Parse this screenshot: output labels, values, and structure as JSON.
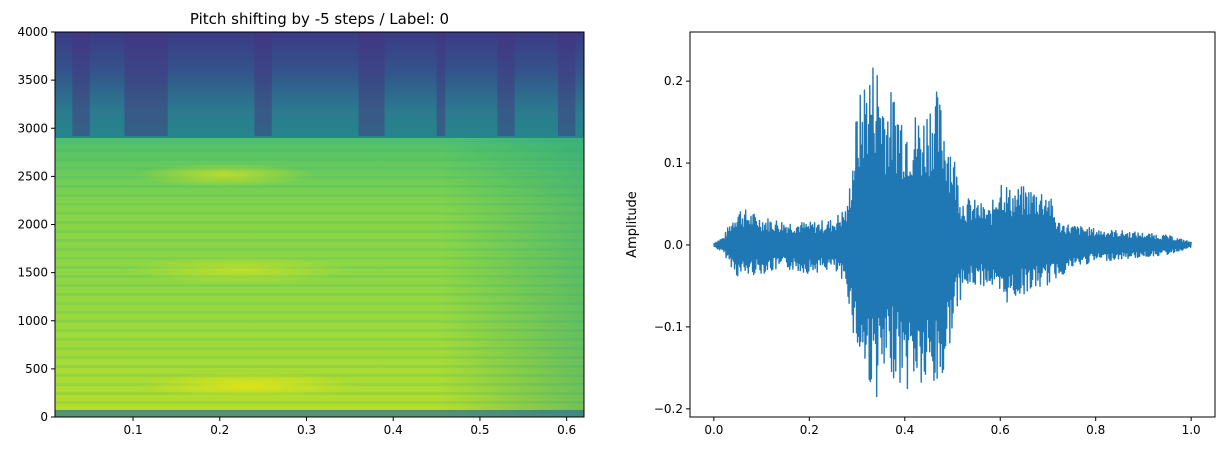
{
  "chart_data": [
    {
      "type": "heatmap",
      "title": "Pitch shifting by -5 steps / Label: 0",
      "xlabel": "",
      "ylabel": "",
      "xlim": [
        0.01,
        0.62
      ],
      "ylim": [
        0,
        4000
      ],
      "xticks": [
        "0.1",
        "0.2",
        "0.3",
        "0.4",
        "0.5",
        "0.6"
      ],
      "xtick_values": [
        0.1,
        0.2,
        0.3,
        0.4,
        0.5,
        0.6
      ],
      "yticks": [
        "0",
        "500",
        "1000",
        "1500",
        "2000",
        "2500",
        "3000",
        "3500",
        "4000"
      ],
      "ytick_values": [
        0,
        500,
        1000,
        1500,
        2000,
        2500,
        3000,
        3500,
        4000
      ],
      "colormap": "viridis",
      "band_cutoff_hz": 2920,
      "grid": false
    },
    {
      "type": "line",
      "title": "",
      "xlabel": "",
      "ylabel": "Amplitude",
      "xlim": [
        -0.05,
        1.05
      ],
      "ylim": [
        -0.21,
        0.26
      ],
      "xticks": [
        "0.0",
        "0.2",
        "0.4",
        "0.6",
        "0.8",
        "1.0"
      ],
      "xtick_values": [
        0.0,
        0.2,
        0.4,
        0.6,
        0.8,
        1.0
      ],
      "yticks": [
        "−0.2",
        "−0.1",
        "0.0",
        "0.1",
        "0.2"
      ],
      "ytick_values": [
        -0.2,
        -0.1,
        0.0,
        0.1,
        0.2
      ],
      "series": [
        {
          "color": "#1f77b4",
          "envelope": {
            "x": [
              0.0,
              0.02,
              0.05,
              0.1,
              0.15,
              0.2,
              0.25,
              0.28,
              0.3,
              0.32,
              0.34,
              0.36,
              0.38,
              0.4,
              0.42,
              0.44,
              0.46,
              0.48,
              0.5,
              0.52,
              0.55,
              0.58,
              0.6,
              0.62,
              0.65,
              0.7,
              0.72,
              0.75,
              0.8,
              0.85,
              0.9,
              0.95,
              1.0
            ],
            "upper": [
              0.003,
              0.01,
              0.048,
              0.035,
              0.03,
              0.028,
              0.032,
              0.05,
              0.17,
              0.22,
              0.235,
              0.19,
              0.19,
              0.17,
              0.165,
              0.165,
              0.2,
              0.17,
              0.125,
              0.06,
              0.055,
              0.045,
              0.09,
              0.07,
              0.072,
              0.07,
              0.03,
              0.025,
              0.02,
              0.018,
              0.015,
              0.012,
              0.004
            ],
            "lower": [
              -0.002,
              -0.01,
              -0.04,
              -0.035,
              -0.03,
              -0.035,
              -0.03,
              -0.06,
              -0.14,
              -0.165,
              -0.188,
              -0.175,
              -0.16,
              -0.185,
              -0.17,
              -0.185,
              -0.188,
              -0.175,
              -0.1,
              -0.06,
              -0.05,
              -0.05,
              -0.075,
              -0.07,
              -0.06,
              -0.05,
              -0.04,
              -0.03,
              -0.02,
              -0.018,
              -0.015,
              -0.012,
              -0.003
            ]
          }
        }
      ]
    }
  ]
}
